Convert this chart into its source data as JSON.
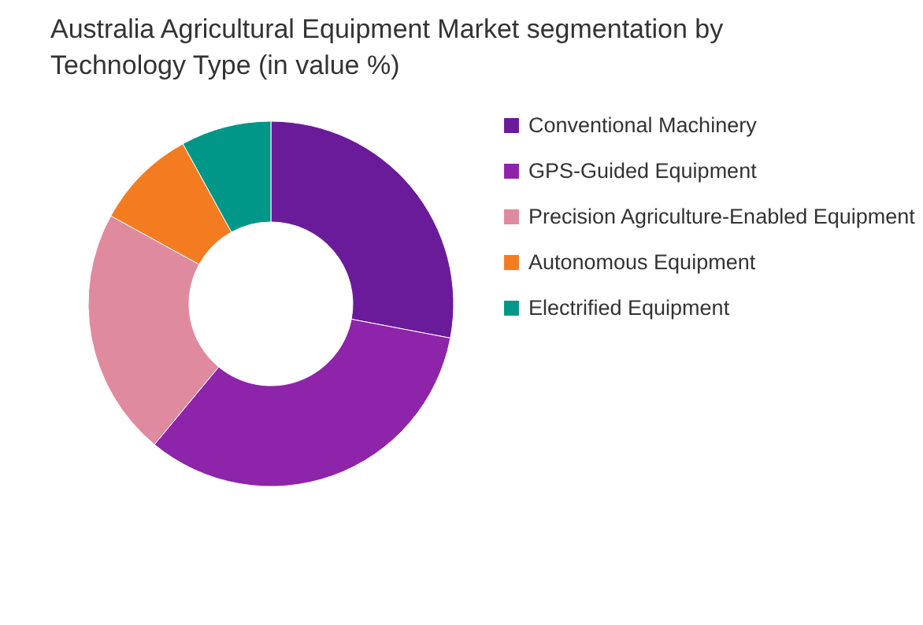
{
  "chart_data": {
    "type": "donut",
    "title": "Australia Agricultural Equipment Market segmentation by Technology Type (in value %)",
    "categories": [
      "Conventional Machinery",
      "GPS-Guided Equipment",
      "Precision Agriculture-Enabled Equipment",
      "Autonomous Equipment",
      "Electrified Equipment"
    ],
    "values": [
      28,
      33,
      22,
      9,
      8
    ],
    "colors": [
      "#6a1b9a",
      "#8e24aa",
      "#e08aa0",
      "#f47c20",
      "#009688"
    ],
    "legend": "right"
  }
}
